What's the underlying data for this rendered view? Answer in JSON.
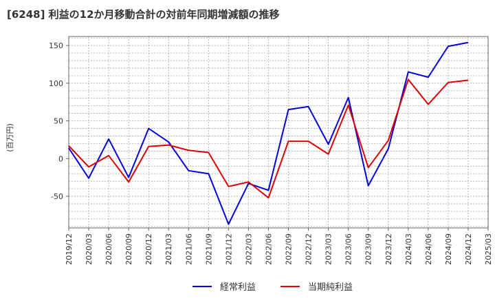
{
  "chart_data": {
    "type": "line",
    "title": "[6248]  利益の12か月移動合計の対前年同期増減額の推移",
    "ylabel": "(百万円)",
    "xlabel": "",
    "ylim": [
      -92,
      162
    ],
    "yticks": [
      150,
      100,
      50,
      0,
      -50
    ],
    "grid": true,
    "legend_position": "bottom-center",
    "categories": [
      "2019/12",
      "2020/03",
      "2020/06",
      "2020/09",
      "2020/12",
      "2021/03",
      "2021/06",
      "2021/09",
      "2021/12",
      "2022/03",
      "2022/06",
      "2022/09",
      "2022/12",
      "2023/03",
      "2023/06",
      "2023/09",
      "2023/12",
      "2024/03",
      "2024/06",
      "2024/09",
      "2024/12",
      "2025/03"
    ],
    "series": [
      {
        "name": "経常利益",
        "color": "#0000dd",
        "values": [
          14,
          -26,
          26,
          -25,
          40,
          22,
          -16,
          -20,
          -87,
          -33,
          -42,
          65,
          69,
          19,
          81,
          -36,
          13,
          115,
          108,
          149,
          154,
          null
        ]
      },
      {
        "name": "当期純利益",
        "color": "#dd0000",
        "values": [
          17,
          -11,
          4,
          -31,
          16,
          18,
          11,
          8,
          -37,
          -31,
          -52,
          23,
          23,
          6,
          71,
          -12,
          24,
          105,
          72,
          101,
          104,
          null
        ]
      }
    ]
  }
}
